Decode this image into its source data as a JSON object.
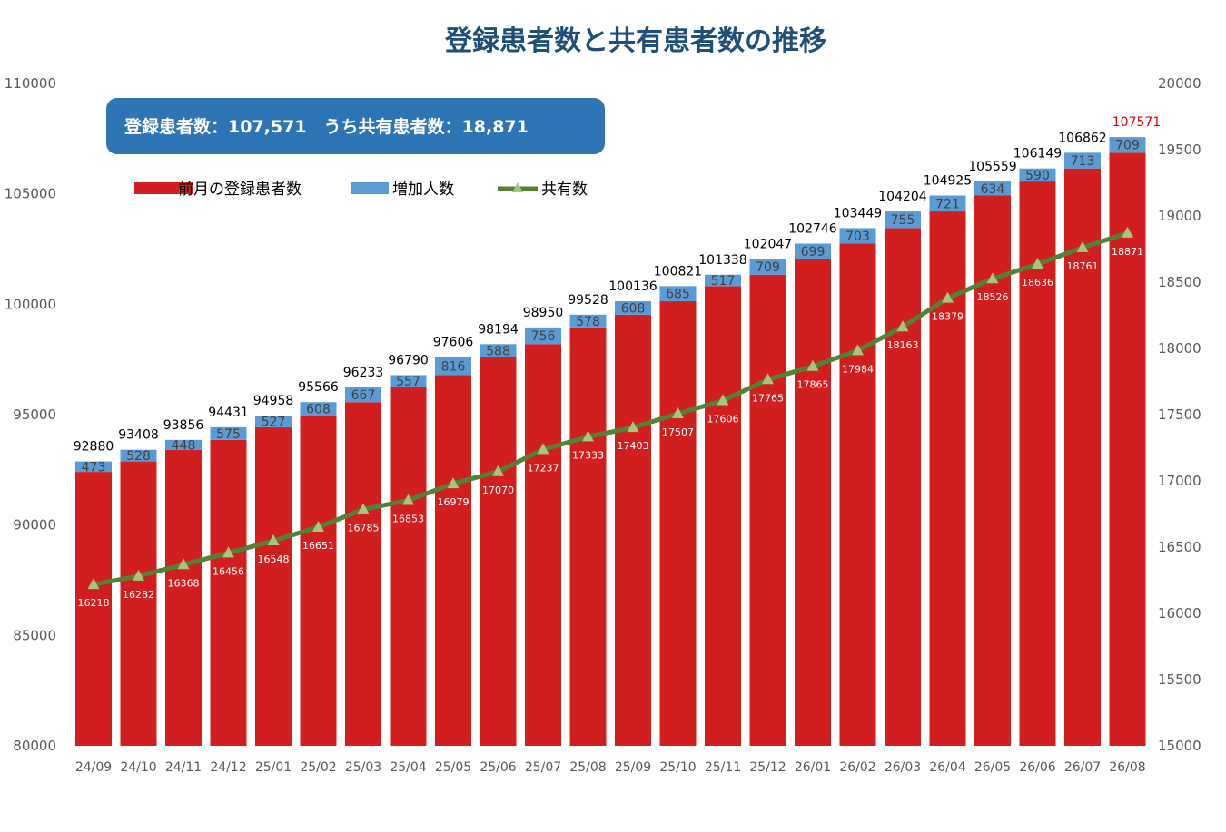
{
  "chart_data": {
    "type": "bar",
    "title": "登録患者数と共有患者数の推移",
    "summary": "登録患者数：107,571　うち共有患者数：18,871",
    "categories": [
      "24/09",
      "24/10",
      "24/11",
      "24/12",
      "25/01",
      "25/02",
      "25/03",
      "25/04",
      "25/05",
      "25/06",
      "25/07",
      "25/08",
      "25/09",
      "25/10",
      "25/11",
      "25/12",
      "26/01",
      "26/02",
      "26/03",
      "26/04",
      "26/05",
      "26/06",
      "26/07",
      "26/08"
    ],
    "series": [
      {
        "name": "前月の登録患者数",
        "axis": "left",
        "kind": "stacked-bar",
        "color": "#d11f1f",
        "values": [
          92407,
          92880,
          93408,
          93856,
          94431,
          94958,
          95566,
          96233,
          96790,
          97606,
          98194,
          98950,
          99528,
          100136,
          100821,
          101338,
          102047,
          102746,
          103449,
          104204,
          104925,
          105559,
          106149,
          106862
        ]
      },
      {
        "name": "増加人数",
        "axis": "left",
        "kind": "stacked-bar",
        "color": "#5b9bd5",
        "values": [
          473,
          528,
          448,
          575,
          527,
          608,
          667,
          557,
          816,
          588,
          756,
          578,
          608,
          685,
          517,
          709,
          699,
          703,
          755,
          721,
          634,
          590,
          713,
          709
        ]
      },
      {
        "name": "共有数",
        "axis": "right",
        "kind": "line",
        "color": "#548235",
        "marker_color": "#a9c47f",
        "values": [
          16218,
          16282,
          16368,
          16456,
          16548,
          16651,
          16785,
          16853,
          16979,
          17070,
          17237,
          17333,
          17403,
          17507,
          17606,
          17765,
          17865,
          17984,
          18163,
          18379,
          18526,
          18636,
          18761,
          18871
        ]
      }
    ],
    "totals": [
      92880,
      93408,
      93856,
      94431,
      94958,
      95566,
      96233,
      96790,
      97606,
      98194,
      98950,
      99528,
      100136,
      100821,
      101338,
      102047,
      102746,
      103449,
      104204,
      104925,
      105559,
      106149,
      106862,
      107571
    ],
    "y_left": {
      "min": 80000,
      "max": 110000,
      "step": 5000,
      "ticks": [
        "80000",
        "85000",
        "90000",
        "95000",
        "100000",
        "105000",
        "110000"
      ]
    },
    "y_right": {
      "min": 15000,
      "max": 20000,
      "step": 500,
      "ticks": [
        "15000",
        "15500",
        "16000",
        "16500",
        "17000",
        "17500",
        "18000",
        "18500",
        "19000",
        "19500",
        "20000"
      ]
    },
    "legend_position": "top-left",
    "grid": false,
    "summary_box_color": "#2e75b6",
    "last_total_color": "#e00000"
  }
}
